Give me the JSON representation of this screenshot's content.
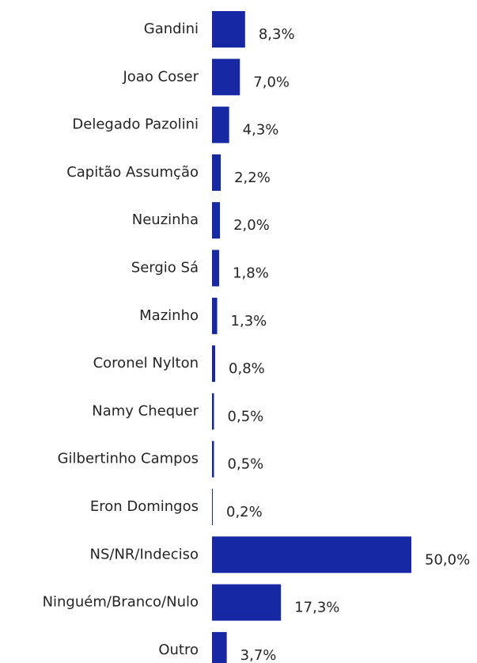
{
  "chart_data": {
    "type": "bar",
    "orientation": "horizontal",
    "color": "#1628a3",
    "categories": [
      "Gandini",
      "Joao Coser",
      "Delegado Pazolini",
      "Capitão Assumção",
      "Neuzinha",
      "Sergio Sá",
      "Mazinho",
      "Coronel Nylton",
      "Namy Chequer",
      "Gilbertinho Campos",
      "Eron Domingos",
      "NS/NR/Indeciso",
      "Ninguém/Branco/Nulo",
      "Outro"
    ],
    "values": [
      8.3,
      7.0,
      4.3,
      2.2,
      2.0,
      1.8,
      1.3,
      0.8,
      0.5,
      0.5,
      0.2,
      50.0,
      17.3,
      3.7
    ],
    "value_labels": [
      "8,3%",
      "7,0%",
      "4,3%",
      "2,2%",
      "2,0%",
      "1,8%",
      "1,3%",
      "0,8%",
      "0,5%",
      "0,5%",
      "0,2%",
      "50,0%",
      "17,3%",
      "3,7%"
    ]
  }
}
